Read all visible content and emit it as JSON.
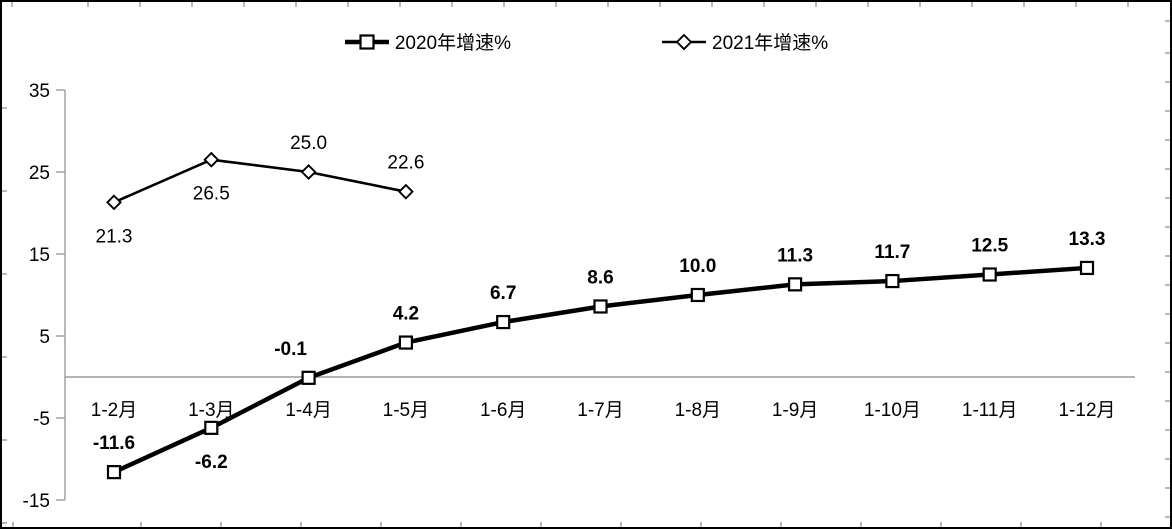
{
  "chart_data": {
    "type": "line",
    "title": "",
    "xlabel": "",
    "ylabel": "",
    "categories": [
      "1-2月",
      "1-3月",
      "1-4月",
      "1-5月",
      "1-6月",
      "1-7月",
      "1-8月",
      "1-9月",
      "1-10月",
      "1-11月",
      "1-12月"
    ],
    "series": [
      {
        "name": "2020年增速%",
        "marker": "square",
        "values": [
          -11.6,
          -6.2,
          -0.1,
          4.2,
          6.7,
          8.6,
          10.0,
          11.3,
          11.7,
          12.5,
          13.3
        ],
        "labels": [
          "-11.6",
          "-6.2",
          "-0.1",
          "4.2",
          "6.7",
          "8.6",
          "10.0",
          "11.3",
          "11.7",
          "12.5",
          "13.3"
        ],
        "label_pos": [
          "above",
          "below",
          "above-left",
          "above",
          "above",
          "above",
          "above",
          "above",
          "above",
          "above",
          "above"
        ],
        "bold_labels": true,
        "line_width": 4.5
      },
      {
        "name": "2021年增速%",
        "marker": "diamond",
        "values": [
          21.3,
          26.5,
          25.0,
          22.6
        ],
        "labels": [
          "21.3",
          "26.5",
          "25.0",
          "22.6"
        ],
        "label_pos": [
          "below",
          "below",
          "above",
          "above"
        ],
        "bold_labels": false,
        "line_width": 2.6
      }
    ],
    "y_ticks": [
      35,
      25,
      15,
      5,
      -5,
      -15
    ],
    "ylim": [
      -15,
      35
    ],
    "grid": "zero-line-only",
    "legend_position": "top-center",
    "colors": {
      "series": "#000000",
      "axis": "#9c9c9c",
      "marker_fill": "#ffffff",
      "text": "#000000",
      "background": "#ffffff",
      "canvas_border": "#000000"
    }
  }
}
